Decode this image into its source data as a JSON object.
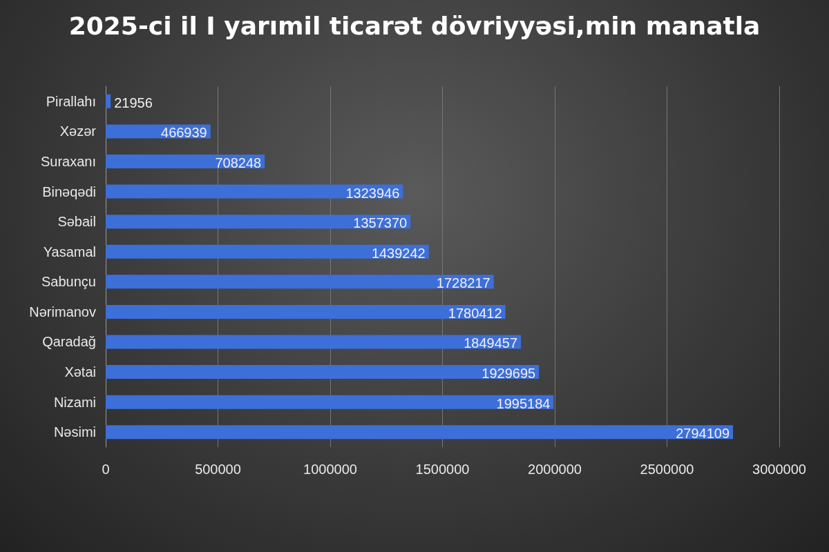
{
  "chart_data": {
    "type": "bar",
    "orientation": "horizontal",
    "title": "2025-ci il I yarımil ticarət dövriyyəsi,min manatla",
    "categories": [
      "Pirallahı",
      "Xəzər",
      "Suraxanı",
      "Binəqədi",
      "Səbail",
      "Yasamal",
      "Sabunçu",
      "Nərimanov",
      "Qaradağ",
      "Xətai",
      "Nizami",
      "Nəsimi"
    ],
    "values": [
      21956,
      466939,
      708248,
      1323946,
      1357370,
      1439242,
      1728217,
      1780412,
      1849457,
      1929695,
      1995184,
      2794109
    ],
    "color": "#3d6fd8",
    "xlim": [
      0,
      3000000
    ],
    "xticks": [
      0,
      500000,
      1000000,
      1500000,
      2000000,
      2500000,
      3000000
    ],
    "grid": "x",
    "data_labels": true
  }
}
